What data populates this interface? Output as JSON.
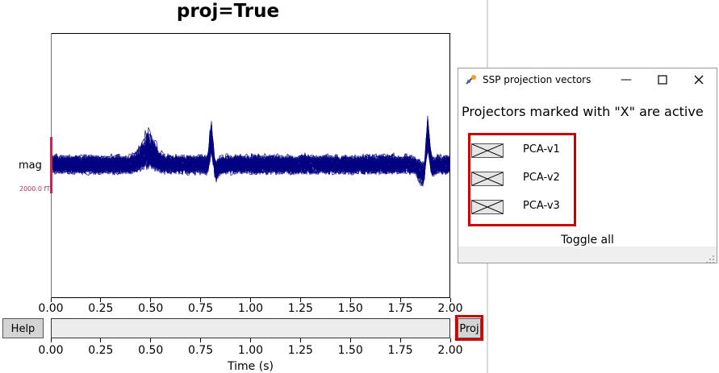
{
  "main": {
    "title": "proj=True",
    "channel_label": "mag",
    "scale_label": "2000.0 fT",
    "help_label": "Help",
    "proj_label": "Proj",
    "xlabel": "Time (s)",
    "xticks": [
      "0.00",
      "0.25",
      "0.50",
      "0.75",
      "1.00",
      "1.25",
      "1.50",
      "1.75",
      "2.00"
    ],
    "trace_color": "#000080",
    "highlight_color": "#cc0000"
  },
  "ssp_dialog": {
    "title": "SSP projection vectors",
    "heading": "Projectors marked with \"X\" are active",
    "projectors": [
      {
        "label": "PCA-v1",
        "active": true
      },
      {
        "label": "PCA-v2",
        "active": true
      },
      {
        "label": "PCA-v3",
        "active": true
      }
    ],
    "toggle_all_label": "Toggle all"
  }
}
